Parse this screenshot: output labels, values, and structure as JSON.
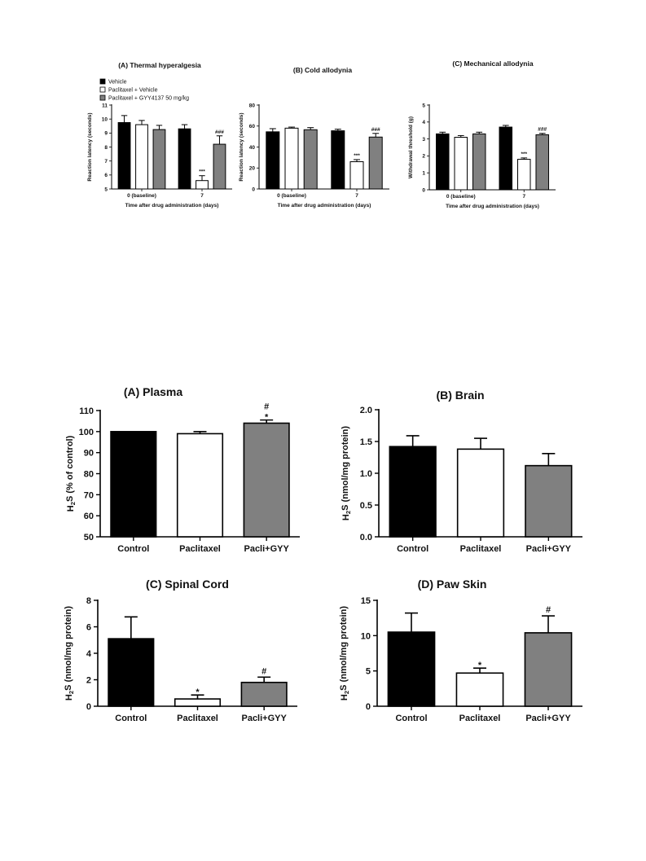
{
  "colors": {
    "black": "#000000",
    "white": "#ffffff",
    "gray": "#808080"
  },
  "top_legend": {
    "items": [
      {
        "label": "Vehicle",
        "color": "#000000"
      },
      {
        "label": "Paclitaxel + Vehicle",
        "color": "#ffffff"
      },
      {
        "label": "Paclitaxel + GYY4137 50 mg/kg",
        "color": "#808080"
      }
    ]
  },
  "chart_data": [
    {
      "id": "A",
      "type": "bar",
      "title": "(A) Thermal hyperalgesia",
      "ylabel": "Reaction latency (seconds)",
      "xlabel": "Time after drug administration (days)",
      "categories": [
        "0 (baseline)",
        "7"
      ],
      "ylim": [
        5,
        11
      ],
      "yticks": [
        5,
        6,
        7,
        8,
        9,
        10,
        11
      ],
      "series": [
        {
          "name": "Vehicle",
          "color": "#000000",
          "values": [
            9.75,
            9.3
          ],
          "errors": [
            0.5,
            0.3
          ],
          "annotations": [
            "",
            ""
          ]
        },
        {
          "name": "Paclitaxel + Vehicle",
          "color": "#ffffff",
          "values": [
            9.6,
            5.6
          ],
          "errors": [
            0.3,
            0.35
          ],
          "annotations": [
            "",
            "***"
          ]
        },
        {
          "name": "Paclitaxel + GYY4137 50 mg/kg",
          "color": "#808080",
          "values": [
            9.25,
            8.2
          ],
          "errors": [
            0.3,
            0.6
          ],
          "annotations": [
            "",
            "###"
          ]
        }
      ]
    },
    {
      "id": "B",
      "type": "bar",
      "title": "(B) Cold allodynia",
      "ylabel": "Reaction latency (seconds)",
      "xlabel": "Time after drug administration (days)",
      "categories": [
        "0 (baseline)",
        "7"
      ],
      "ylim": [
        0,
        80
      ],
      "yticks": [
        0,
        20,
        40,
        60,
        80
      ],
      "series": [
        {
          "name": "Vehicle",
          "color": "#000000",
          "values": [
            54.5,
            55.5
          ],
          "errors": [
            3,
            1.5
          ],
          "annotations": [
            "",
            ""
          ]
        },
        {
          "name": "Paclitaxel + Vehicle",
          "color": "#ffffff",
          "values": [
            58,
            26
          ],
          "errors": [
            1,
            2
          ],
          "annotations": [
            "",
            "***"
          ]
        },
        {
          "name": "Paclitaxel + GYY4137 50 mg/kg",
          "color": "#808080",
          "values": [
            56.5,
            49.5
          ],
          "errors": [
            2,
            3.5
          ],
          "annotations": [
            "",
            "###"
          ]
        }
      ]
    },
    {
      "id": "C",
      "type": "bar",
      "title": "(C) Mechanical allodynia",
      "ylabel": "Withdrawal threshold (g)",
      "xlabel": "Time after drug administration (days)",
      "categories": [
        "0 (baseline)",
        "7"
      ],
      "ylim": [
        0,
        5
      ],
      "yticks": [
        0,
        1,
        2,
        3,
        4,
        5
      ],
      "series": [
        {
          "name": "Vehicle",
          "color": "#000000",
          "values": [
            3.3,
            3.7
          ],
          "errors": [
            0.1,
            0.1
          ],
          "annotations": [
            "",
            ""
          ]
        },
        {
          "name": "Paclitaxel + Vehicle",
          "color": "#ffffff",
          "values": [
            3.1,
            1.8
          ],
          "errors": [
            0.1,
            0.08
          ],
          "annotations": [
            "",
            "***"
          ]
        },
        {
          "name": "Paclitaxel + GYY4137 50 mg/kg",
          "color": "#808080",
          "values": [
            3.3,
            3.25
          ],
          "errors": [
            0.1,
            0.08
          ],
          "annotations": [
            "",
            "###"
          ]
        }
      ]
    },
    {
      "id": "D",
      "type": "bar",
      "title": "(A) Plasma",
      "ylabel": "H2S (% of control)",
      "xlabel": "",
      "categories": [
        "Control",
        "Paclitaxel",
        "Pacli+GYY"
      ],
      "colors": [
        "#000000",
        "#ffffff",
        "#808080"
      ],
      "ylim": [
        50,
        110
      ],
      "yticks": [
        50,
        60,
        70,
        80,
        90,
        100,
        110
      ],
      "values": [
        100,
        99,
        104
      ],
      "errors": [
        0,
        1,
        1.5
      ],
      "annotations": [
        "",
        "",
        "#\n*"
      ]
    },
    {
      "id": "E",
      "type": "bar",
      "title": "(B) Brain",
      "ylabel": "H2S (nmol/mg protein)",
      "xlabel": "",
      "categories": [
        "Control",
        "Paclitaxel",
        "Pacli+GYY"
      ],
      "colors": [
        "#000000",
        "#ffffff",
        "#808080"
      ],
      "ylim": [
        0,
        2
      ],
      "yticks": [
        0.0,
        0.5,
        1.0,
        1.5,
        2.0
      ],
      "ytick_labels": [
        "0.0",
        "0.5",
        "1.0",
        "1.5",
        "2.0"
      ],
      "values": [
        1.42,
        1.38,
        1.12
      ],
      "errors": [
        0.17,
        0.17,
        0.19
      ],
      "annotations": [
        "",
        "",
        ""
      ]
    },
    {
      "id": "F",
      "type": "bar",
      "title": "(C) Spinal Cord",
      "ylabel": "H2S (nmol/mg protein)",
      "xlabel": "",
      "categories": [
        "Control",
        "Paclitaxel",
        "Pacli+GYY"
      ],
      "colors": [
        "#000000",
        "#ffffff",
        "#808080"
      ],
      "ylim": [
        0,
        8
      ],
      "yticks": [
        0,
        2,
        4,
        6,
        8
      ],
      "values": [
        5.1,
        0.55,
        1.8
      ],
      "errors": [
        1.65,
        0.3,
        0.4
      ],
      "annotations": [
        "",
        "*",
        "#"
      ]
    },
    {
      "id": "G",
      "type": "bar",
      "title": "(D) Paw Skin",
      "ylabel": "H2S (nmol/mg protein)",
      "xlabel": "",
      "categories": [
        "Control",
        "Paclitaxel",
        "Pacli+GYY"
      ],
      "colors": [
        "#000000",
        "#ffffff",
        "#808080"
      ],
      "ylim": [
        0,
        15
      ],
      "yticks": [
        0,
        5,
        10,
        15
      ],
      "values": [
        10.5,
        4.7,
        10.4
      ],
      "errors": [
        2.7,
        0.7,
        2.4
      ],
      "annotations": [
        "",
        "*",
        "#"
      ]
    }
  ]
}
